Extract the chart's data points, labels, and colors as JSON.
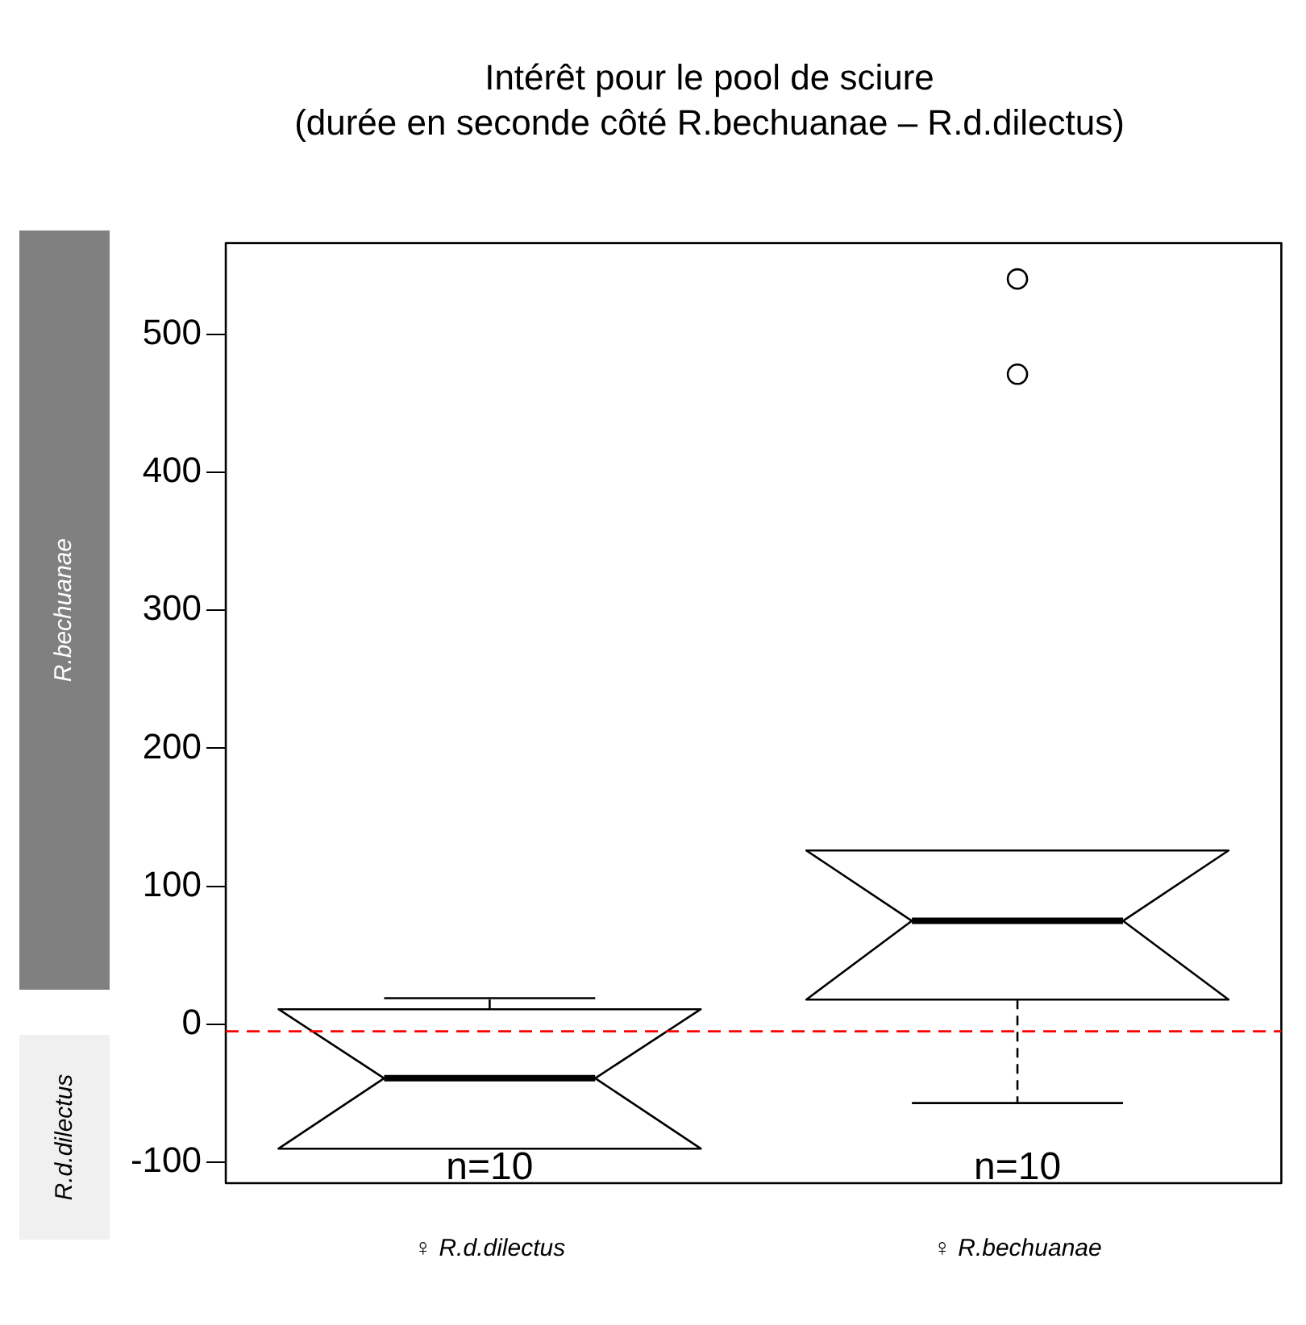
{
  "chart_data": {
    "type": "box",
    "title": "Intérêt pour le pool de sciure",
    "subtitle": "(durée en seconde côté R.bechuanae – R.d.dilectus)",
    "categories": [
      "♀ R.d.dilectus",
      "♀ R.bechuanae"
    ],
    "boxes": [
      {
        "low": -90,
        "q1": -90,
        "median": -39,
        "q3": 11,
        "high": 19
      },
      {
        "low": -57,
        "q1": 18,
        "median": 75,
        "q3": 126,
        "high": 126,
        "outliers": [
          540,
          471
        ]
      }
    ],
    "ylim": [
      -115,
      566
    ],
    "yticks": [
      -100,
      0,
      100,
      200,
      300,
      400,
      500
    ],
    "ref_lines": [
      {
        "axis": "y",
        "value": -5,
        "color": "#ff0000",
        "line_style": "dashed"
      }
    ],
    "annotations": [
      "n=10",
      "n=10",
      "R.bechuanae",
      "R.d.dilectus"
    ],
    "grid": false,
    "legend": false,
    "marker": "circle"
  }
}
